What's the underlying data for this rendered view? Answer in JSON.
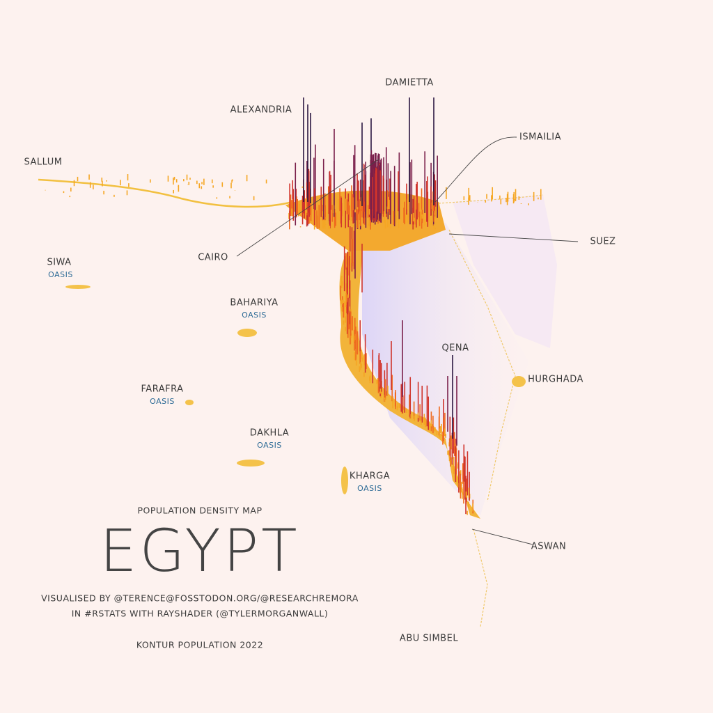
{
  "header": {
    "kicker": "POPULATION DENSITY MAP",
    "title": "EGYPT",
    "credits": [
      "VISUALISED BY @TERENCE@FOSSTODON.ORG/@RESEARCHREMORA",
      "IN #RSTATS WITH RAYSHADER (@TYLERMORGANWALL)"
    ],
    "source": "KONTUR POPULATION 2022"
  },
  "places": [
    {
      "name": "ALEXANDRIA"
    },
    {
      "name": "DAMIETTA"
    },
    {
      "name": "SALLUM"
    },
    {
      "name": "ISMAILIA"
    },
    {
      "name": "CAIRO"
    },
    {
      "name": "SUEZ"
    },
    {
      "name": "SIWA",
      "note": "OASIS"
    },
    {
      "name": "BAHARIYA",
      "note": "OASIS"
    },
    {
      "name": "FARAFRA",
      "note": "OASIS"
    },
    {
      "name": "QENA"
    },
    {
      "name": "HURGHADA"
    },
    {
      "name": "DAKHLA",
      "note": "OASIS"
    },
    {
      "name": "KHARGA",
      "note": "OASIS"
    },
    {
      "name": "ASWAN"
    },
    {
      "name": "ABU SIMBEL"
    }
  ]
}
